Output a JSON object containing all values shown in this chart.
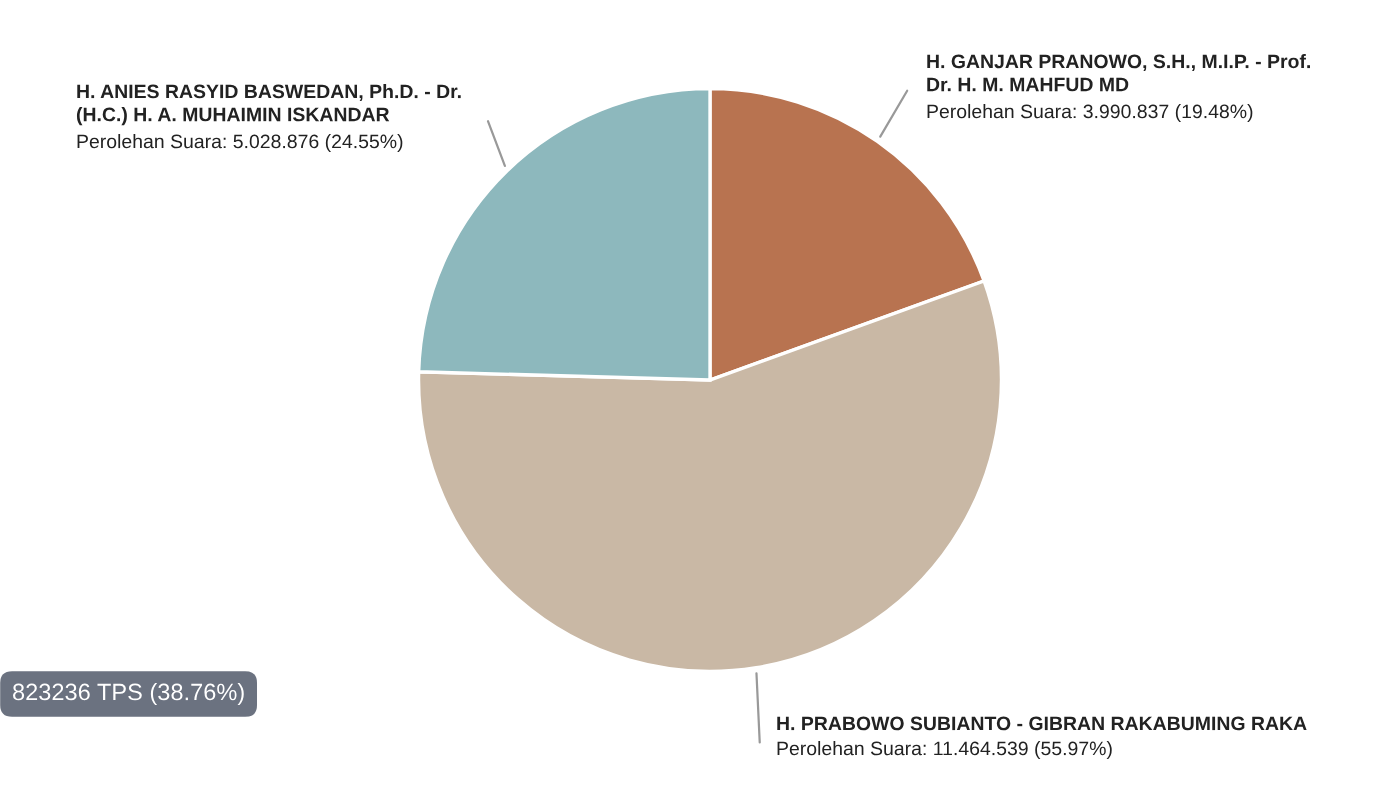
{
  "chart_data": {
    "type": "pie",
    "categories": [
      "H. GANJAR PRANOWO, S.H., M.I.P. - Prof.\nDr. H. M. MAHFUD MD",
      "H. PRABOWO SUBIANTO - GIBRAN RAKABUMING RAKA",
      "H. ANIES RASYID BASWEDAN, Ph.D. - Dr.\n(H.C.) H. A. MUHAIMIN ISKANDAR"
    ],
    "values": [
      3990837,
      11464539,
      5028876
    ],
    "colors": [
      "#b87350",
      "#c9b8a5",
      "#8db8bd"
    ],
    "value_labels": [
      "Perolehan Suara: 3.990.837 (19.48%)",
      "Perolehan Suara: 11.464.539 (55.97%)",
      "Perolehan Suara: 5.028.876 (24.55%)"
    ],
    "annotations": [
      "823236 TPS (38.76%)"
    ],
    "legend": false
  }
}
